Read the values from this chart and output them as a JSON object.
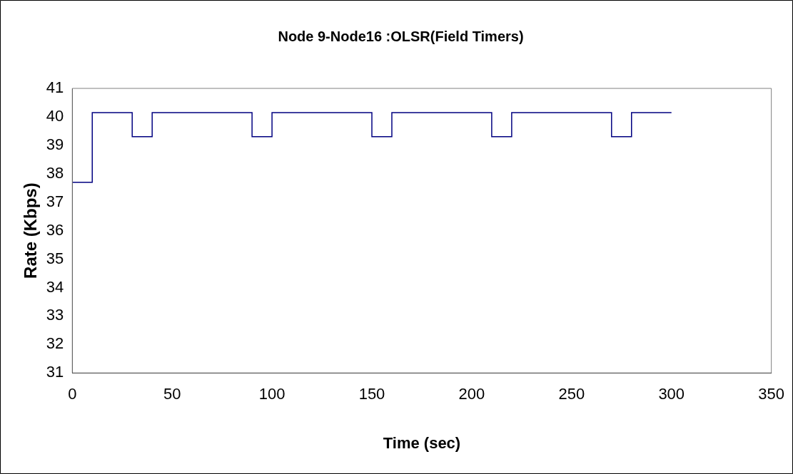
{
  "chart_data": {
    "type": "step",
    "title": "Node 9-Node16 :OLSR(Field Timers)",
    "xlabel": "Time (sec)",
    "ylabel": "Rate (Kbps)",
    "x": [
      0,
      10,
      30,
      40,
      90,
      100,
      150,
      160,
      210,
      220,
      270,
      280,
      300
    ],
    "series": [
      {
        "color": "#000080",
        "values": [
          37.7,
          40.15,
          39.3,
          40.15,
          39.3,
          40.15,
          39.3,
          40.15,
          39.3,
          40.15,
          39.3,
          40.15,
          40.15
        ]
      }
    ],
    "xlim": [
      0,
      350
    ],
    "xticks": [
      0,
      50,
      100,
      150,
      200,
      250,
      300,
      350
    ],
    "ylim": [
      31,
      41
    ],
    "yticks": [
      31,
      32,
      33,
      34,
      35,
      36,
      37,
      38,
      39,
      40,
      41
    ],
    "grid": false,
    "legend": false,
    "marker": "none",
    "line_style": "solid"
  }
}
